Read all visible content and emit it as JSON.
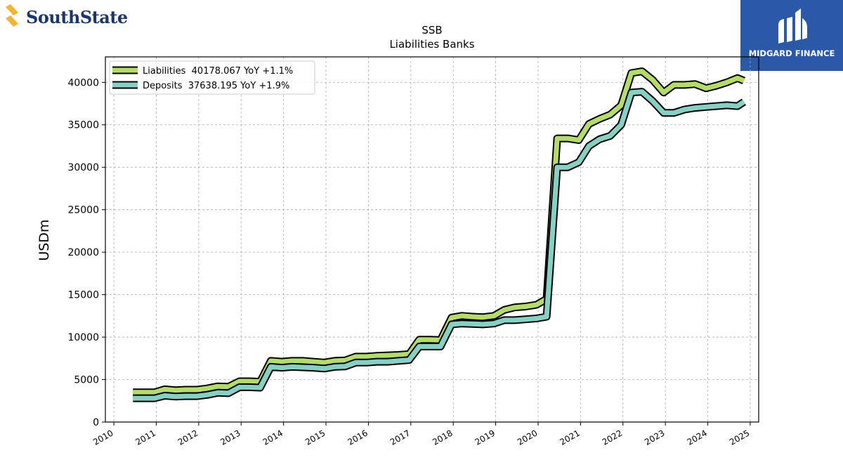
{
  "logos": {
    "left": {
      "text": "SouthState",
      "text_color": "#1b3668",
      "mark_color": "#f5b335"
    },
    "right": {
      "text": "MIDGARD FINANCE",
      "bg_color": "#2b58a7"
    }
  },
  "chart_data": {
    "type": "line",
    "title": "SSB",
    "subtitle": "Liabilities Banks",
    "xlabel": "",
    "ylabel": "USDm",
    "xlim": [
      2009.8,
      2025.2
    ],
    "ylim": [
      0,
      43000
    ],
    "x_ticks": [
      "2010",
      "2011",
      "2012",
      "2013",
      "2014",
      "2015",
      "2016",
      "2017",
      "2018",
      "2019",
      "2020",
      "2021",
      "2022",
      "2023",
      "2024",
      "2025"
    ],
    "y_ticks": [
      "0",
      "5000",
      "10000",
      "15000",
      "20000",
      "25000",
      "30000",
      "35000",
      "40000"
    ],
    "grid": true,
    "legend_position": "top-left",
    "series": [
      {
        "name": "Liabilities  40178.067 YoY +1.1%",
        "color": "#b5dc6a",
        "x": [
          2010.45,
          2010.7,
          2010.96,
          2011.2,
          2011.45,
          2011.7,
          2011.96,
          2012.2,
          2012.45,
          2012.7,
          2012.96,
          2013.2,
          2013.45,
          2013.7,
          2013.96,
          2014.2,
          2014.45,
          2014.7,
          2014.96,
          2015.2,
          2015.45,
          2015.7,
          2015.96,
          2016.2,
          2016.45,
          2016.7,
          2016.96,
          2017.2,
          2017.45,
          2017.7,
          2017.96,
          2018.2,
          2018.45,
          2018.7,
          2018.96,
          2019.2,
          2019.45,
          2019.7,
          2019.96,
          2020.2,
          2020.45,
          2020.7,
          2020.96,
          2021.2,
          2021.45,
          2021.7,
          2021.96,
          2022.2,
          2022.45,
          2022.7,
          2022.96,
          2023.2,
          2023.45,
          2023.7,
          2023.96,
          2024.2,
          2024.45,
          2024.7,
          2024.85
        ],
        "values": [
          3500,
          3500,
          3500,
          3850,
          3750,
          3800,
          3800,
          3950,
          4200,
          4150,
          4800,
          4800,
          4750,
          7200,
          7100,
          7200,
          7200,
          7100,
          7000,
          7200,
          7250,
          7700,
          7700,
          7800,
          7850,
          7900,
          8000,
          9700,
          9700,
          9650,
          12300,
          12500,
          12400,
          12350,
          12500,
          13200,
          13500,
          13600,
          13800,
          14500,
          33400,
          33400,
          33200,
          35100,
          35700,
          36200,
          37300,
          41100,
          41300,
          40300,
          38800,
          39700,
          39700,
          39800,
          39300,
          39600,
          40000,
          40500,
          40200
        ]
      },
      {
        "name": "Deposits  37638.195 YoY +1.9%",
        "color": "#86d1c4",
        "x": [
          2010.45,
          2010.7,
          2010.96,
          2011.2,
          2011.45,
          2011.7,
          2011.96,
          2012.2,
          2012.45,
          2012.7,
          2012.96,
          2013.2,
          2013.45,
          2013.7,
          2013.96,
          2014.2,
          2014.45,
          2014.7,
          2014.96,
          2015.2,
          2015.45,
          2015.7,
          2015.96,
          2016.2,
          2016.45,
          2016.7,
          2016.96,
          2017.2,
          2017.45,
          2017.7,
          2017.96,
          2018.2,
          2018.45,
          2018.7,
          2018.96,
          2019.2,
          2019.45,
          2019.7,
          2019.96,
          2020.2,
          2020.45,
          2020.7,
          2020.96,
          2021.2,
          2021.45,
          2021.7,
          2021.96,
          2022.2,
          2022.45,
          2022.7,
          2022.96,
          2023.2,
          2023.45,
          2023.7,
          2023.96,
          2024.2,
          2024.45,
          2024.7,
          2024.85
        ],
        "values": [
          2800,
          2800,
          2800,
          3100,
          3000,
          3050,
          3050,
          3200,
          3450,
          3400,
          4100,
          4100,
          4050,
          6500,
          6400,
          6500,
          6450,
          6400,
          6300,
          6500,
          6550,
          7000,
          7000,
          7100,
          7100,
          7200,
          7300,
          8900,
          8900,
          8900,
          11500,
          11600,
          11550,
          11500,
          11600,
          12000,
          12000,
          12100,
          12200,
          12400,
          30000,
          30000,
          30600,
          32500,
          33300,
          33700,
          35000,
          38800,
          38900,
          37800,
          36400,
          36400,
          36800,
          37000,
          37100,
          37200,
          37300,
          37200,
          37700
        ]
      }
    ]
  }
}
